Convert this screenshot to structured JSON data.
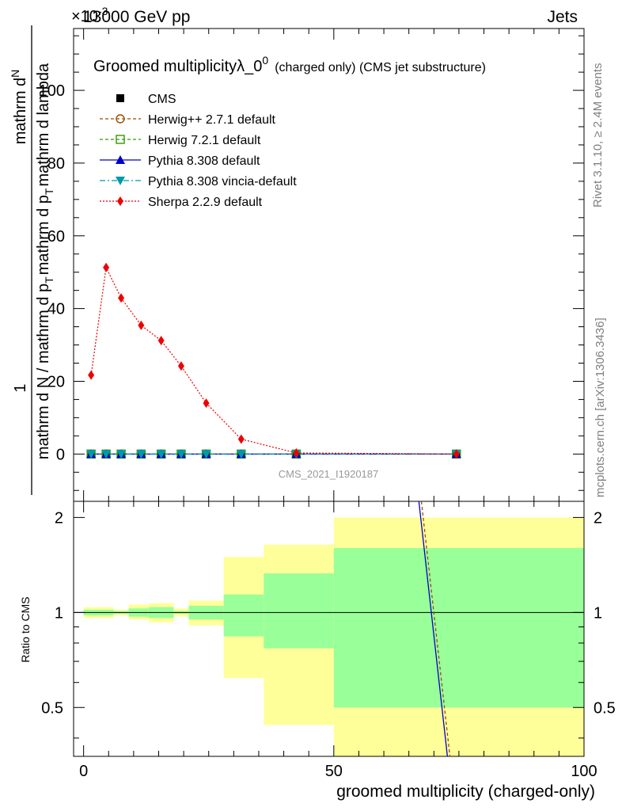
{
  "header": {
    "energy_label": "13000 GeV pp",
    "process_label": "Jets",
    "exponent_label": "×10",
    "exponent_sup": "-3"
  },
  "side_labels": {
    "rivet": "Rivet 3.1.10, ≥ 2.4M events",
    "mcplots": "mcplots.cern.ch [arXiv:1306.3436]"
  },
  "chart_data": [
    {
      "type": "line",
      "title": "Groomed multiplicityλ_0",
      "title_sup": "0",
      "subtitle": "(charged only) (CMS jet substructure)",
      "ylabel_top": "1",
      "ylabel_num": "mathrm d",
      "ylabel_num_tail": "N",
      "ylabel_den": "mathrm d N / mathrm d p",
      "ylabel_den_mid": "mathrm d p",
      "ylabel_den_tail": "mathrm d lambda",
      "ylabel_sub": "T",
      "watermark": "CMS_2021_I1920187",
      "xlim": [
        -2,
        100
      ],
      "ylim": [
        -13,
        117
      ],
      "yticks": [
        0,
        20,
        40,
        60,
        80,
        100
      ],
      "legend_position": "top-left",
      "series": [
        {
          "name": "CMS",
          "color": "#000000",
          "marker": "square",
          "x": [
            1.5,
            4.5,
            7.5,
            11.5,
            15.5,
            19.5,
            24.5,
            31.5,
            42.5,
            74.5
          ],
          "y": [
            0,
            0,
            0,
            0,
            0,
            0,
            0,
            0,
            0,
            0
          ]
        },
        {
          "name": "Herwig++ 2.7.1 default",
          "color": "#994c00",
          "marker": "circle-open",
          "dash": "4,3",
          "x": [
            1.5,
            4.5,
            7.5,
            11.5,
            15.5,
            19.5,
            24.5,
            31.5,
            42.5,
            74.5
          ],
          "y": [
            0,
            0,
            0,
            0,
            0,
            0,
            0,
            0,
            0,
            0
          ]
        },
        {
          "name": "Herwig 7.2.1 default",
          "color": "#339900",
          "marker": "square-open",
          "dash": "4,3",
          "x": [
            1.5,
            4.5,
            7.5,
            11.5,
            15.5,
            19.5,
            24.5,
            31.5,
            42.5,
            74.5
          ],
          "y": [
            0,
            0,
            0,
            0,
            0,
            0,
            0,
            0,
            0,
            0
          ]
        },
        {
          "name": "Pythia 8.308 default",
          "color": "#0000cc",
          "marker": "triangle-up",
          "dash": "",
          "x": [
            1.5,
            4.5,
            7.5,
            11.5,
            15.5,
            19.5,
            24.5,
            31.5,
            42.5,
            74.5
          ],
          "y": [
            0,
            0,
            0,
            0,
            0,
            0,
            0,
            0,
            0,
            0
          ]
        },
        {
          "name": "Pythia 8.308 vincia-default",
          "color": "#0099aa",
          "marker": "triangle-down",
          "dash": "7,3,2,3",
          "x": [
            1.5,
            4.5,
            7.5,
            11.5,
            15.5,
            19.5,
            24.5,
            31.5,
            42.5,
            74.5
          ],
          "y": [
            0,
            0,
            0,
            0,
            0,
            0,
            0,
            0,
            0,
            0
          ]
        },
        {
          "name": "Sherpa 2.2.9 default",
          "color": "#ee0000",
          "marker": "diamond",
          "dash": "2,2",
          "x": [
            1.5,
            4.5,
            7.5,
            11.5,
            15.5,
            19.5,
            24.5,
            31.5,
            42.5,
            74.5
          ],
          "y": [
            21.7,
            51.3,
            42.9,
            35.4,
            31.2,
            24.2,
            14.0,
            4.1,
            0.3,
            0.0
          ]
        }
      ]
    },
    {
      "type": "area",
      "ylabel": "Ratio to CMS",
      "xlabel": "groomed multiplicity (charged-only)",
      "xlim": [
        -2,
        100
      ],
      "ylim": [
        0.35,
        2.25
      ],
      "xticks": [
        0,
        50,
        100
      ],
      "yticks": [
        0.5,
        1,
        2
      ],
      "band_outer_color": "#ffff99",
      "band_inner_color": "#99ff99",
      "bins": [
        {
          "lo": 0,
          "hi": 3,
          "outer": [
            0.96,
            1.04
          ],
          "inner": [
            0.98,
            1.02
          ]
        },
        {
          "lo": 3,
          "hi": 6,
          "outer": [
            0.96,
            1.04
          ],
          "inner": [
            0.98,
            1.02
          ]
        },
        {
          "lo": 6,
          "hi": 9,
          "outer": [
            0.98,
            1.02
          ],
          "inner": [
            0.99,
            1.01
          ]
        },
        {
          "lo": 9,
          "hi": 13,
          "outer": [
            0.95,
            1.06
          ],
          "inner": [
            0.97,
            1.03
          ]
        },
        {
          "lo": 13,
          "hi": 18,
          "outer": [
            0.93,
            1.07
          ],
          "inner": [
            0.96,
            1.04
          ]
        },
        {
          "lo": 18,
          "hi": 21,
          "outer": [
            0.97,
            1.03
          ],
          "inner": [
            0.99,
            1.01
          ]
        },
        {
          "lo": 21,
          "hi": 28,
          "outer": [
            0.91,
            1.09
          ],
          "inner": [
            0.95,
            1.05
          ]
        },
        {
          "lo": 28,
          "hi": 36,
          "outer": [
            0.62,
            1.5
          ],
          "inner": [
            0.84,
            1.14
          ]
        },
        {
          "lo": 36,
          "hi": 50,
          "outer": [
            0.44,
            1.64
          ],
          "inner": [
            0.77,
            1.33
          ]
        },
        {
          "lo": 50,
          "hi": 100,
          "outer": [
            0.35,
            2.0
          ],
          "inner": [
            0.5,
            1.6
          ]
        }
      ],
      "ratio_lines": [
        {
          "name": "Herwig++ 2.7.1 default",
          "color": "#994c00",
          "dash": "4,3",
          "x": [
            67.5,
            73.2
          ],
          "y": [
            2.25,
            0.35
          ]
        },
        {
          "name": "Pythia 8.308 default",
          "color": "#0000cc",
          "dash": "",
          "x": [
            67.0,
            72.7
          ],
          "y": [
            2.25,
            0.35
          ]
        }
      ]
    }
  ]
}
